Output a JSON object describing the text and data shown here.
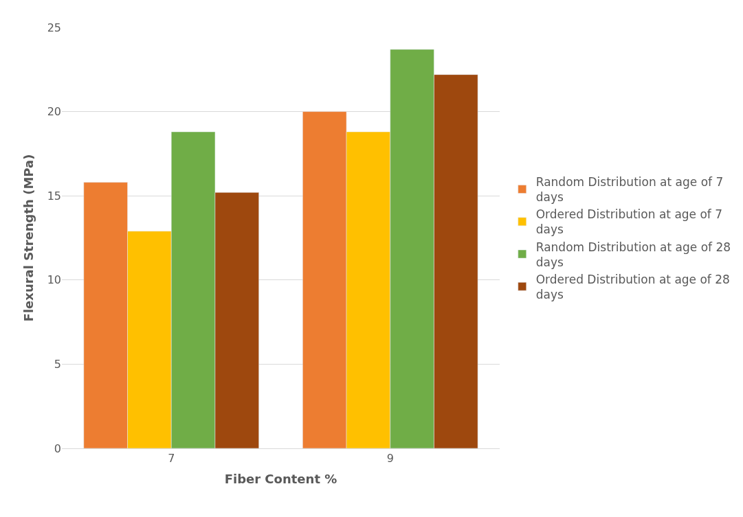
{
  "chart_data": {
    "type": "bar",
    "xlabel": "Fiber Content %",
    "ylabel": "Flexural Strength (MPa)",
    "categories": [
      "7",
      "9"
    ],
    "series": [
      {
        "name": "Random Distribution at age of 7 days",
        "color": "#ed7d31",
        "values": [
          15.8,
          20.0
        ]
      },
      {
        "name": "Ordered Distribution at age of 7 days",
        "color": "#ffc000",
        "values": [
          12.9,
          18.8
        ]
      },
      {
        "name": "Random Distribution at age of 28 days",
        "color": "#70ad47",
        "values": [
          18.8,
          23.7
        ]
      },
      {
        "name": "Ordered Distribution at age of 28 days",
        "color": "#9e480e",
        "values": [
          15.2,
          22.2
        ]
      }
    ],
    "ylim": [
      0,
      25
    ],
    "yticks": [
      0,
      5,
      10,
      15,
      20,
      25
    ],
    "grid": "y",
    "legend": "right"
  }
}
